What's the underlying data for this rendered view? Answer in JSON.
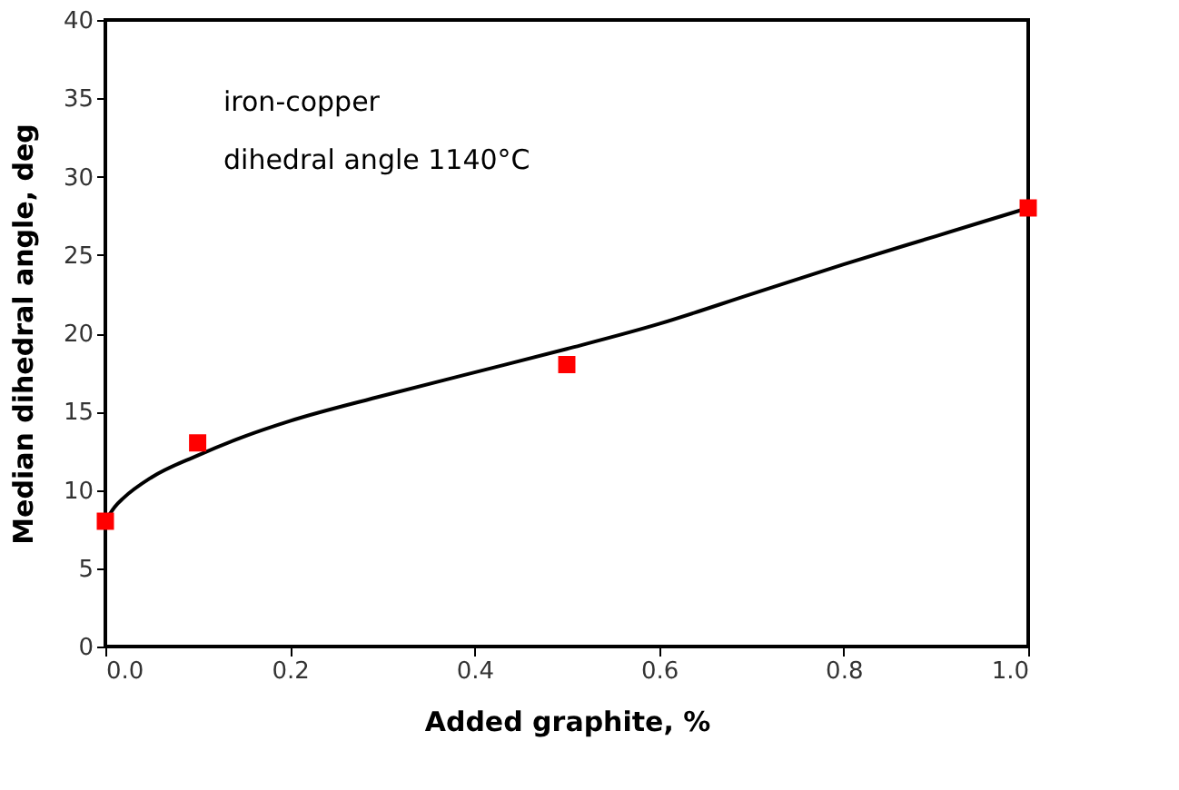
{
  "chart_data": {
    "type": "scatter",
    "xlabel": "Added graphite, %",
    "ylabel": "Median dihedral angle, deg",
    "annotations": [
      "iron-copper",
      "dihedral angle 1140°C"
    ],
    "series": [
      {
        "color": "#ff0000",
        "marker": "square",
        "x": [
          0.0,
          0.1,
          0.5,
          1.0
        ],
        "values": [
          8,
          13,
          18,
          28
        ]
      },
      {
        "type": "line",
        "color": "#000000",
        "marker": "none",
        "line_style": "solid",
        "x": [
          0.0,
          0.01,
          0.02,
          0.05,
          0.1,
          0.15,
          0.2,
          0.3,
          0.4,
          0.5,
          0.6,
          0.7,
          0.8,
          0.9,
          1.0
        ],
        "values": [
          8.0,
          8.9,
          9.5,
          10.8,
          12.2,
          13.4,
          14.4,
          16.0,
          17.5,
          19.0,
          20.6,
          22.5,
          24.4,
          26.2,
          28.0
        ]
      }
    ],
    "xlim": [
      0,
      1.0
    ],
    "ylim": [
      0,
      40
    ],
    "xticks": [
      {
        "value": 0,
        "label": "0.0"
      },
      0.2,
      0.4,
      0.6,
      0.8,
      {
        "value": 1.0,
        "label": "1.0"
      }
    ],
    "yticks": [
      0,
      5,
      10,
      15,
      20,
      25,
      30,
      35,
      40
    ],
    "grid": false
  }
}
